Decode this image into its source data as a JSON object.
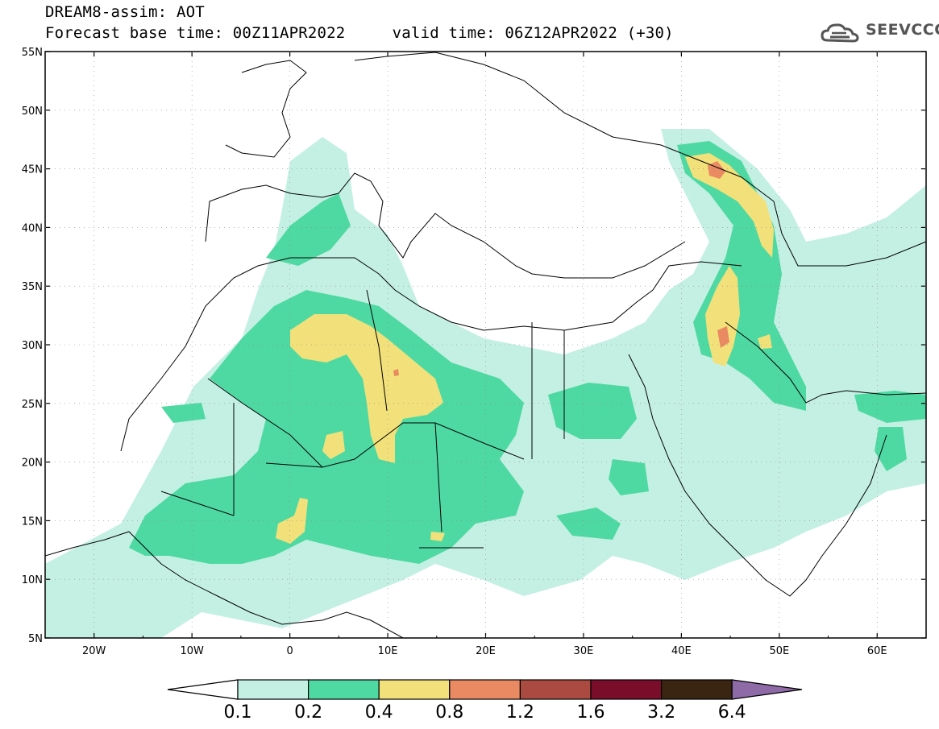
{
  "title": {
    "line1": "DREAM8-assim: AOT",
    "line2_left": "Forecast base time: 00Z11APR2022",
    "line2_right": "valid time: 06Z12APR2022 (+30)"
  },
  "logo": {
    "text": "SEEVCCC",
    "icon": "cloud-icon"
  },
  "map": {
    "lon_range": [
      -25,
      65
    ],
    "lat_range": [
      5,
      55
    ],
    "lat_labels": [
      "55N",
      "50N",
      "45N",
      "40N",
      "35N",
      "30N",
      "25N",
      "20N",
      "15N",
      "10N",
      "5N"
    ],
    "lon_labels": [
      "20W",
      "10W",
      "0",
      "10E",
      "20E",
      "30E",
      "40E",
      "50E",
      "60E"
    ]
  },
  "colorbar": {
    "colors": [
      "#ffffff",
      "#c4f0e4",
      "#4fd9a2",
      "#f2e17a",
      "#e98a63",
      "#aa4a40",
      "#7a0d2a",
      "#3a2513",
      "#8e6aa6"
    ],
    "labels": [
      "0.1",
      "0.2",
      "0.4",
      "0.8",
      "1.2",
      "1.6",
      "3.2",
      "6.4"
    ]
  }
}
